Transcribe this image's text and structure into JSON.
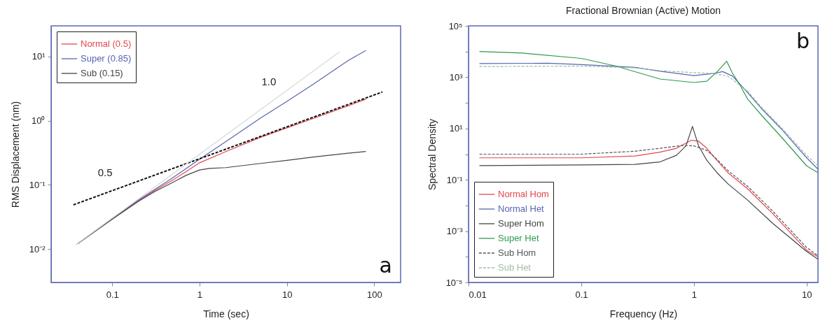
{
  "chart_data": [
    {
      "type": "line",
      "xlabel": "Time (sec)",
      "ylabel": "RMS Displacement (nm)",
      "log": "xy",
      "grid": false,
      "legend": "top left",
      "xlim": [
        0.02,
        200
      ],
      "xticks": [
        0.1,
        1,
        10,
        100
      ],
      "ylim": [
        0.003,
        30
      ],
      "yticks": [
        {
          "value": 0.01,
          "label": "10⁻²"
        },
        {
          "value": 0.1,
          "label": "10⁻¹"
        },
        {
          "value": 1,
          "label": "10⁰"
        },
        {
          "value": 10,
          "label": "10¹"
        }
      ],
      "series": [
        {
          "name": "Normal (0.5)",
          "color": "#e0474c",
          "x": [
            0.04,
            0.1,
            0.2,
            0.3,
            0.5,
            0.7,
            1,
            2,
            5,
            10,
            20,
            50,
            80
          ],
          "values": [
            0.012,
            0.029,
            0.057,
            0.08,
            0.12,
            0.16,
            0.22,
            0.33,
            0.55,
            0.77,
            1.08,
            1.7,
            2.16
          ]
        },
        {
          "name": "Super (0.85)",
          "color": "#5765b3",
          "x": [
            0.04,
            0.1,
            0.2,
            0.5,
            1,
            2,
            5,
            10,
            20,
            50,
            80
          ],
          "values": [
            0.012,
            0.03,
            0.058,
            0.13,
            0.25,
            0.47,
            1.1,
            2.0,
            3.7,
            8.6,
            12.4
          ]
        },
        {
          "name": "Sub (0.15)",
          "color": "#444444",
          "x": [
            0.04,
            0.1,
            0.2,
            0.3,
            0.5,
            0.7,
            1,
            1.3,
            2,
            5,
            10,
            20,
            50,
            80
          ],
          "values": [
            0.012,
            0.029,
            0.055,
            0.077,
            0.11,
            0.14,
            0.17,
            0.18,
            0.185,
            0.215,
            0.24,
            0.27,
            0.31,
            0.33
          ]
        },
        {
          "color": "#111111",
          "line_style": "dashed",
          "x": [
            0.036,
            124
          ],
          "values": [
            0.0487,
            2.8
          ]
        },
        {
          "color": "#d8d8d8",
          "x": [
            0.038,
            40
          ],
          "values": [
            0.0115,
            11.8
          ]
        }
      ],
      "annotations": [
        {
          "text": "0.5",
          "x": 0.083,
          "y": 0.0734
        },
        {
          "text": "1.0",
          "x": 6.2,
          "y": 1.88
        },
        "a"
      ]
    },
    {
      "type": "line",
      "title": "Fractional Brownian (Active) Motion",
      "xlabel": "Frequency (Hz)",
      "ylabel": "Spectral Density",
      "log": "xy",
      "grid": false,
      "legend": "bottom left",
      "xlim": [
        0.01,
        12.6
      ],
      "xticks": [
        0.01,
        0.1,
        1,
        10
      ],
      "ylim": [
        1e-05,
        100000
      ],
      "yticks": [
        {
          "value": 1e-05,
          "label": "10⁻⁵"
        },
        {
          "value": 0.0001,
          "label": null
        },
        {
          "value": 0.001,
          "label": "10⁻³"
        },
        {
          "value": 0.01,
          "label": null
        },
        {
          "value": 0.1,
          "label": "10⁻¹"
        },
        {
          "value": 1,
          "label": null
        },
        {
          "value": 10,
          "label": "10¹"
        },
        {
          "value": 100,
          "label": null
        },
        {
          "value": 1000,
          "label": "10³"
        },
        {
          "value": 10000,
          "label": null
        },
        {
          "value": 100000,
          "label": "10⁵"
        }
      ],
      "series": [
        {
          "name": "Normal Hom",
          "color": "#e0474c",
          "x": [
            0.0125,
            0.1,
            0.3,
            0.5,
            0.7,
            0.95,
            1.1,
            1.3,
            1.6,
            2,
            3,
            5,
            10,
            12.6
          ],
          "values": [
            0.72,
            0.72,
            0.85,
            1.2,
            1.7,
            3.5,
            3.2,
            1.7,
            0.57,
            0.19,
            0.044,
            0.0048,
            0.00018,
            0.0001
          ]
        },
        {
          "name": "Normal Het",
          "color": "#5765b3",
          "x": [
            0.0125,
            0.05,
            0.1,
            0.3,
            0.5,
            1,
            1.5,
            1.8,
            2.2,
            3,
            4,
            6,
            10,
            12.6
          ],
          "values": [
            3400,
            3500,
            3100,
            2400,
            1700,
            1150,
            1400,
            1650,
            1100,
            250,
            58,
            9.3,
            0.72,
            0.26
          ]
        },
        {
          "name": "Super Hom",
          "color": "#444444",
          "x": [
            0.0125,
            0.1,
            0.3,
            0.5,
            0.7,
            0.85,
            0.97,
            1.1,
            1.3,
            1.6,
            2,
            3,
            5,
            10,
            12.6
          ],
          "values": [
            0.36,
            0.38,
            0.4,
            0.5,
            0.9,
            2.1,
            12,
            2.1,
            0.58,
            0.19,
            0.07,
            0.016,
            0.002,
            0.00016,
            8e-05
          ]
        },
        {
          "name": "Super Het",
          "color": "#2e9a4e",
          "x": [
            0.0125,
            0.03,
            0.1,
            0.2,
            0.5,
            1,
            1.3,
            1.6,
            1.95,
            2.2,
            2.5,
            3,
            4,
            6,
            10,
            12.6
          ],
          "values": [
            10000,
            8700,
            5400,
            2750,
            850,
            620,
            700,
            1600,
            4200,
            1400,
            590,
            138,
            32,
            4.5,
            0.35,
            0.19
          ]
        },
        {
          "name": "Sub Hom",
          "color": "#555555",
          "line_style": "dashed",
          "x": [
            0.0125,
            0.1,
            0.3,
            0.5,
            0.8,
            1,
            1.3,
            1.6,
            2,
            3,
            5,
            10,
            12.6
          ],
          "values": [
            1.0,
            1.0,
            1.3,
            1.7,
            2.2,
            2.1,
            1.4,
            0.63,
            0.23,
            0.055,
            0.006,
            0.00023,
            0.00011
          ]
        },
        {
          "name": "Sub Het",
          "color": "#9dbf9f",
          "line_style": "dashed",
          "x": [
            0.0125,
            0.1,
            0.3,
            0.5,
            1,
            1.5,
            2,
            3,
            4,
            6,
            10,
            12.6
          ],
          "values": [
            2600,
            2700,
            2300,
            1800,
            1500,
            1400,
            1100,
            280,
            66,
            10.5,
            0.9,
            0.35
          ]
        }
      ],
      "annotations": [
        "b"
      ]
    }
  ]
}
